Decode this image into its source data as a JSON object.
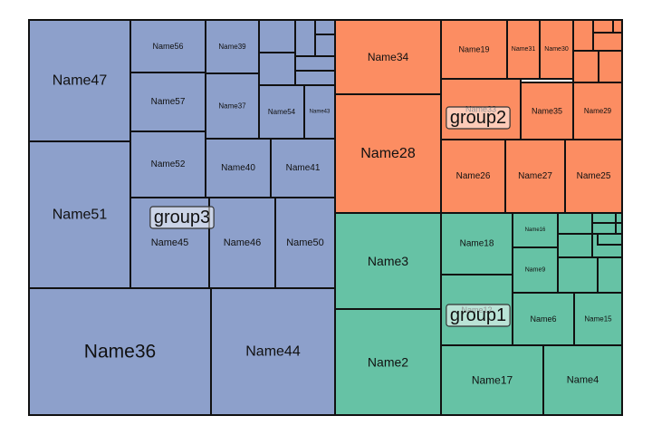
{
  "chart_data": {
    "type": "treemap",
    "colors": {
      "group1": "#66c2a5",
      "group2": "#fc8d62",
      "group3": "#8da0cb",
      "border": "#111111",
      "label_box": "#ffffff"
    },
    "groups": [
      {
        "name": "group3",
        "color": "#8da0cb",
        "items": [
          {
            "name": "Name47",
            "label": "Name47"
          },
          {
            "name": "Name51",
            "label": "Name51"
          },
          {
            "name": "Name36",
            "label": "Name36"
          },
          {
            "name": "Name44",
            "label": "Name44"
          },
          {
            "name": "Name56",
            "label": "Name56"
          },
          {
            "name": "Name57",
            "label": "Name57"
          },
          {
            "name": "Name52",
            "label": "Name52"
          },
          {
            "name": "Name45",
            "label": "Name45"
          },
          {
            "name": "Name46",
            "label": "Name46"
          },
          {
            "name": "Name50",
            "label": "Name50"
          },
          {
            "name": "Name39",
            "label": "Name39"
          },
          {
            "name": "Name37",
            "label": "Name37"
          },
          {
            "name": "Name40",
            "label": "Name40"
          },
          {
            "name": "Name41",
            "label": "Name41"
          },
          {
            "name": "Name54",
            "label": "Name54"
          },
          {
            "name": "Name43",
            "label": "Name43"
          },
          {
            "name": "g3-small-1",
            "label": ""
          },
          {
            "name": "g3-small-2",
            "label": ""
          },
          {
            "name": "g3-small-3",
            "label": ""
          },
          {
            "name": "g3-small-4",
            "label": ""
          },
          {
            "name": "g3-small-5",
            "label": ""
          },
          {
            "name": "g3-small-6",
            "label": ""
          },
          {
            "name": "g3-small-7",
            "label": ""
          }
        ]
      },
      {
        "name": "group2",
        "color": "#fc8d62",
        "items": [
          {
            "name": "Name34",
            "label": "Name34"
          },
          {
            "name": "Name28",
            "label": "Name28"
          },
          {
            "name": "Name19",
            "label": "Name19"
          },
          {
            "name": "Name31",
            "label": "Name31"
          },
          {
            "name": "Name30",
            "label": "Name30"
          },
          {
            "name": "Name33",
            "label": "Name33"
          },
          {
            "name": "Name35",
            "label": "Name35"
          },
          {
            "name": "Name29",
            "label": "Name29"
          },
          {
            "name": "Name26",
            "label": "Name26"
          },
          {
            "name": "Name27",
            "label": "Name27"
          },
          {
            "name": "Name25",
            "label": "Name25"
          },
          {
            "name": "g2-small-1",
            "label": ""
          },
          {
            "name": "g2-small-2",
            "label": ""
          },
          {
            "name": "g2-small-3",
            "label": ""
          },
          {
            "name": "g2-small-4",
            "label": ""
          },
          {
            "name": "g2-small-5",
            "label": ""
          },
          {
            "name": "g2-small-6",
            "label": ""
          }
        ]
      },
      {
        "name": "group1",
        "color": "#66c2a5",
        "items": [
          {
            "name": "Name3",
            "label": "Name3"
          },
          {
            "name": "Name2",
            "label": "Name2"
          },
          {
            "name": "Name18",
            "label": "Name18"
          },
          {
            "name": "Name12",
            "label": "Name12"
          },
          {
            "name": "Name16",
            "label": "Name16"
          },
          {
            "name": "Name9",
            "label": "Name9"
          },
          {
            "name": "Name6",
            "label": "Name6"
          },
          {
            "name": "Name15",
            "label": "Name15"
          },
          {
            "name": "Name17",
            "label": "Name17"
          },
          {
            "name": "Name4",
            "label": "Name4"
          },
          {
            "name": "g1-small-1",
            "label": ""
          },
          {
            "name": "g1-small-2",
            "label": ""
          },
          {
            "name": "g1-small-3",
            "label": ""
          },
          {
            "name": "g1-small-4",
            "label": ""
          },
          {
            "name": "g1-small-5",
            "label": ""
          },
          {
            "name": "g1-small-6",
            "label": ""
          },
          {
            "name": "g1-small-7",
            "label": ""
          },
          {
            "name": "g1-small-8",
            "label": ""
          },
          {
            "name": "g1-small-9",
            "label": ""
          },
          {
            "name": "g1-small-10",
            "label": ""
          }
        ]
      }
    ]
  }
}
